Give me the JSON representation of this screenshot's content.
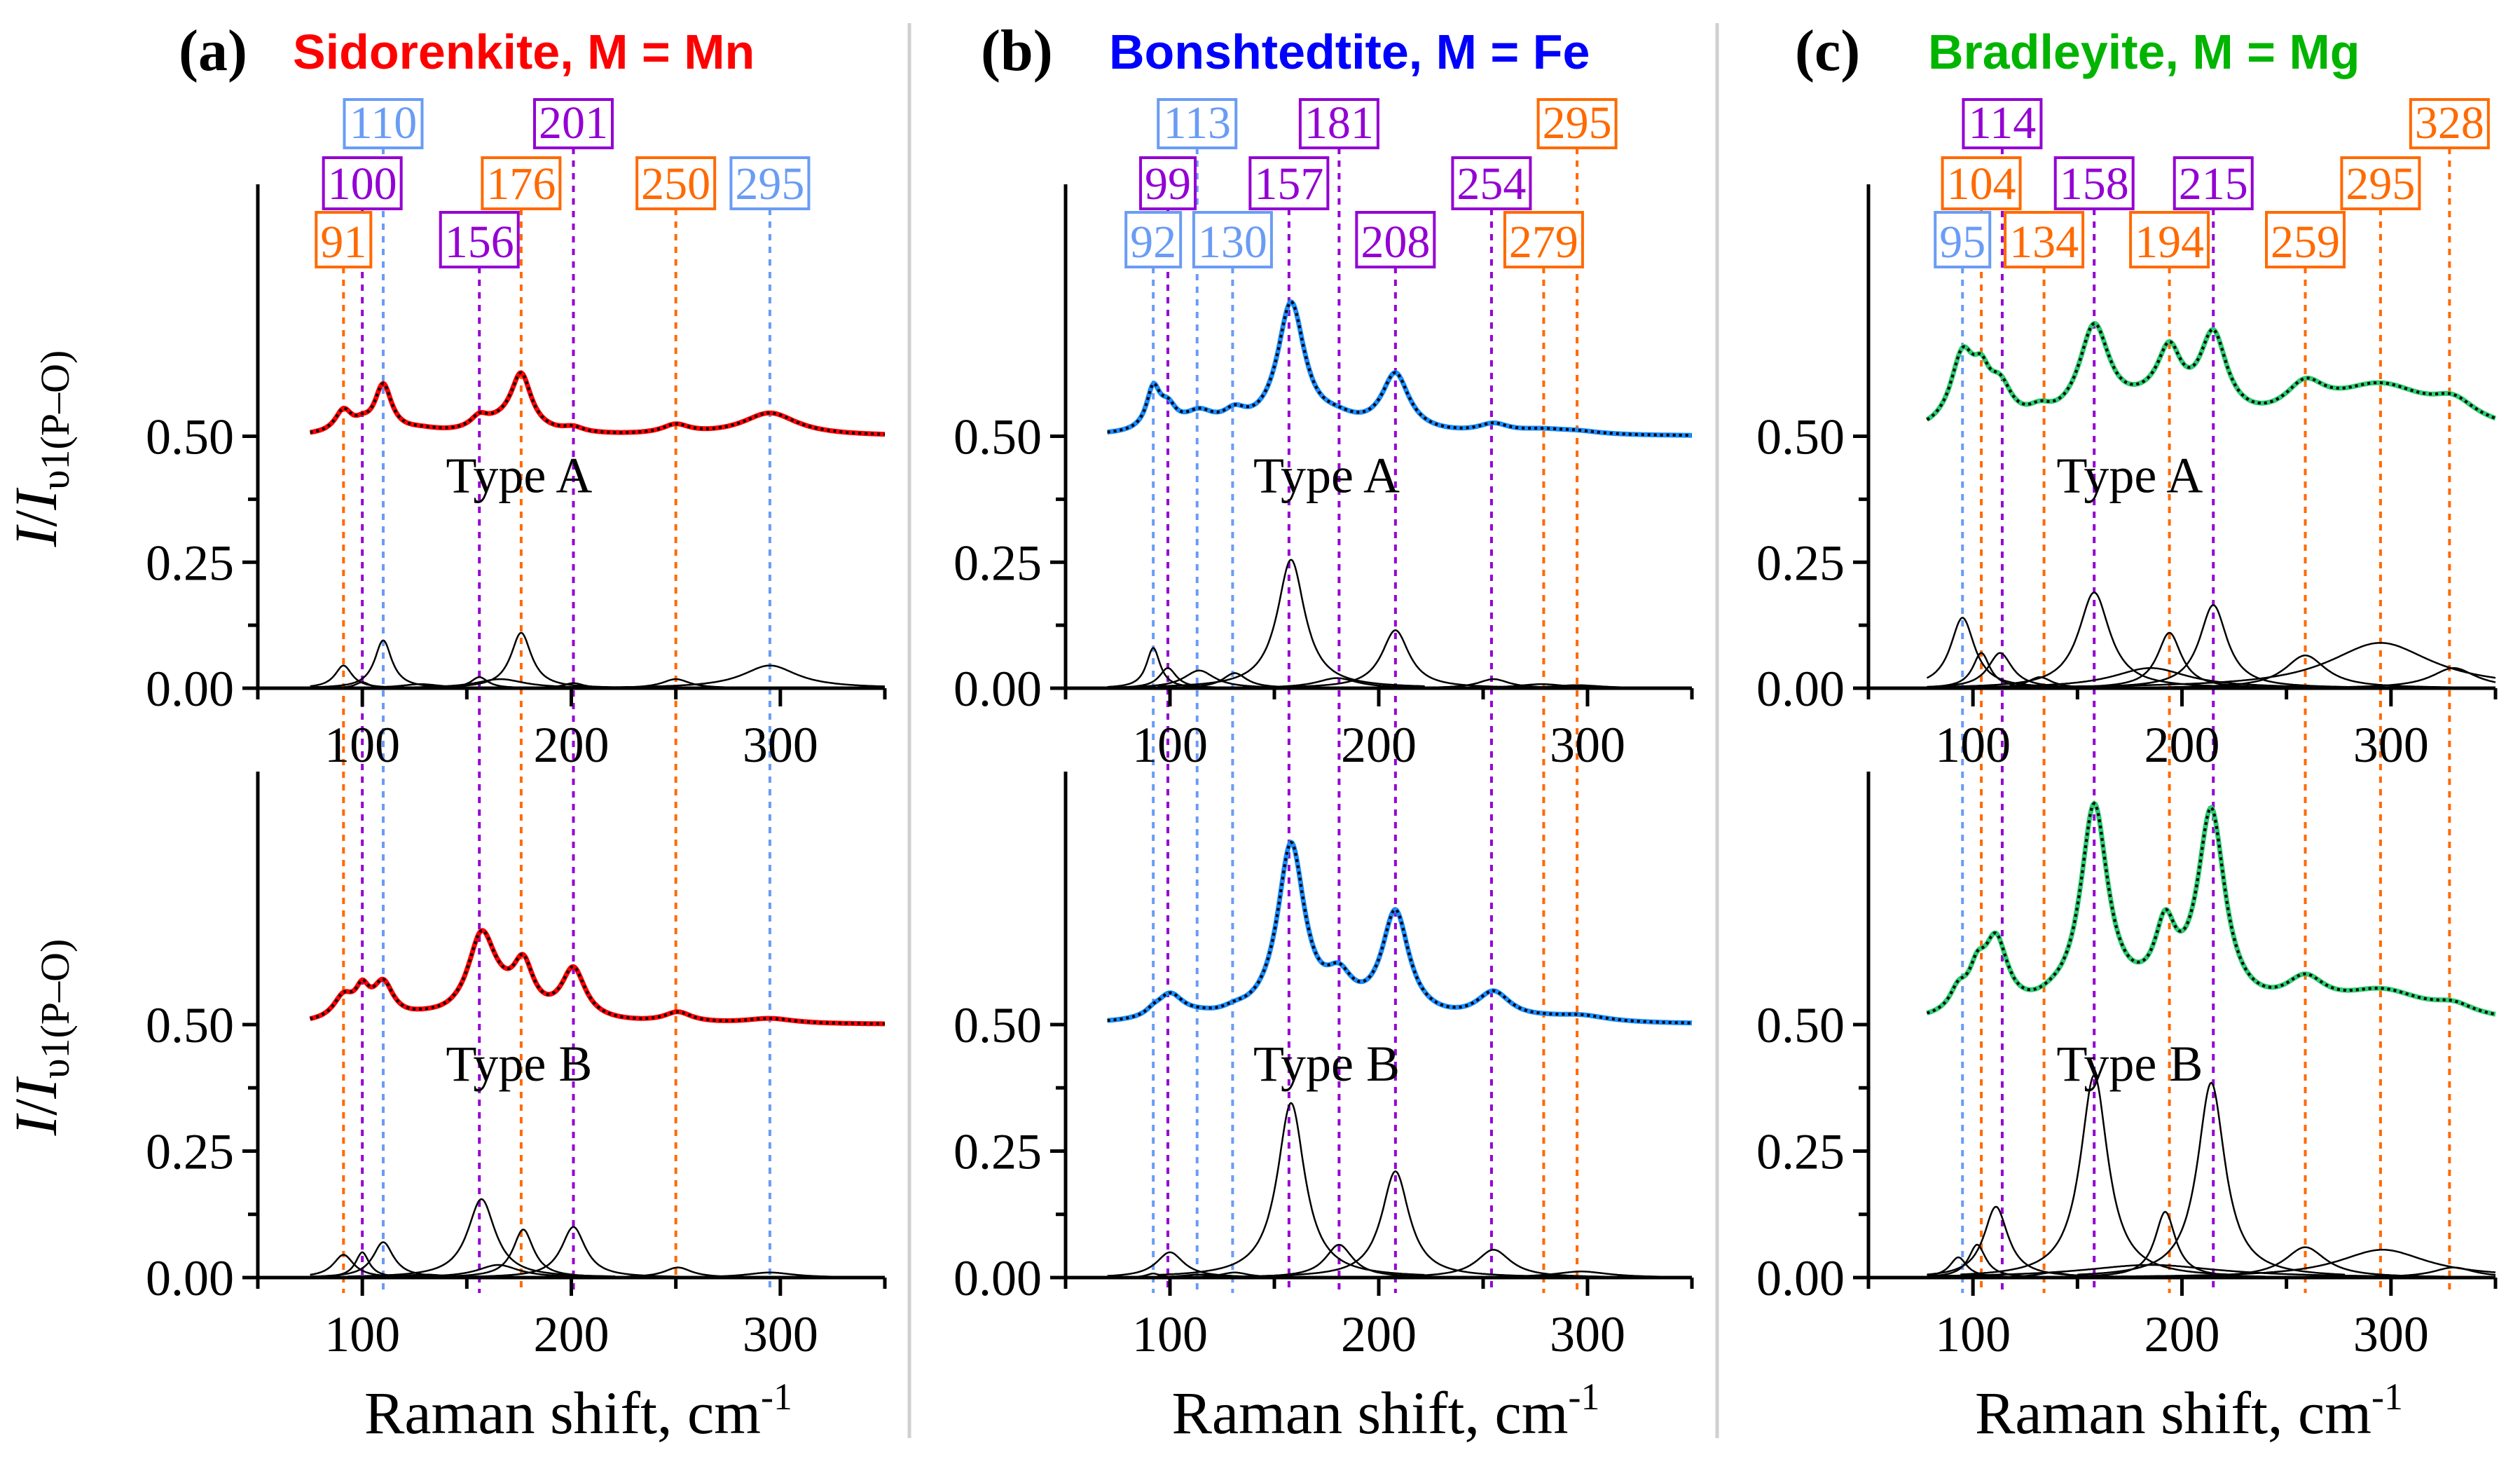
{
  "chart_data": [
    {
      "type": "line",
      "panel_letter": "(a)",
      "title": "Sidorenkite, M = Mn",
      "title_color": "#ff0000",
      "fit_color": "#ff0000",
      "xlabel": "Raman shift, cm-1",
      "ylabel": "I/I_υ1(P–O)",
      "xlim": [
        50,
        350
      ],
      "ylim": [
        0,
        1.0
      ],
      "x_ticks": [
        100,
        200,
        300
      ],
      "x_minor_ticks": [
        50,
        150,
        250,
        350
      ],
      "y_ticks": [
        "0.00",
        "0.25",
        "0.50"
      ],
      "y_minor_ticks": [
        0.125,
        0.375
      ],
      "spectrum_x_range": [
        75,
        350
      ],
      "offset": 0.5,
      "peak_labels": [
        {
          "value": 110,
          "text": "110",
          "color": "#6a9cf5",
          "row": 1
        },
        {
          "value": 201,
          "text": "201",
          "color": "#9400d3",
          "row": 1
        },
        {
          "value": 100,
          "text": "100",
          "color": "#9400d3",
          "row": 2
        },
        {
          "value": 176,
          "text": "176",
          "color": "#ff6a00",
          "row": 2
        },
        {
          "value": 250,
          "text": "250",
          "color": "#ff6a00",
          "row": 2
        },
        {
          "value": 295,
          "text": "295",
          "color": "#6a9cf5",
          "row": 2
        },
        {
          "value": 91,
          "text": "91",
          "color": "#ff6a00",
          "row": 3
        },
        {
          "value": 156,
          "text": "156",
          "color": "#9400d3",
          "row": 3
        }
      ],
      "subplots": [
        {
          "label": "Type A",
          "components": [
            {
              "center": 91,
              "height": 0.045,
              "width": 5
            },
            {
              "center": 100,
              "height": 0.012,
              "width": 4
            },
            {
              "center": 110,
              "height": 0.095,
              "width": 5
            },
            {
              "center": 128,
              "height": 0.008,
              "width": 12
            },
            {
              "center": 156,
              "height": 0.022,
              "width": 5
            },
            {
              "center": 166,
              "height": 0.018,
              "width": 14
            },
            {
              "center": 176,
              "height": 0.11,
              "width": 6
            },
            {
              "center": 201,
              "height": 0.01,
              "width": 6
            },
            {
              "center": 250,
              "height": 0.018,
              "width": 8
            },
            {
              "center": 295,
              "height": 0.045,
              "width": 16
            }
          ]
        },
        {
          "label": "Type B",
          "components": [
            {
              "center": 91,
              "height": 0.045,
              "width": 6
            },
            {
              "center": 100,
              "height": 0.05,
              "width": 4
            },
            {
              "center": 110,
              "height": 0.07,
              "width": 6
            },
            {
              "center": 130,
              "height": 0.006,
              "width": 12
            },
            {
              "center": 157,
              "height": 0.155,
              "width": 8
            },
            {
              "center": 165,
              "height": 0.025,
              "width": 12
            },
            {
              "center": 177,
              "height": 0.095,
              "width": 6
            },
            {
              "center": 201,
              "height": 0.1,
              "width": 7
            },
            {
              "center": 251,
              "height": 0.02,
              "width": 8
            },
            {
              "center": 295,
              "height": 0.01,
              "width": 14
            }
          ]
        }
      ]
    },
    {
      "type": "line",
      "panel_letter": "(b)",
      "title": "Bonshtedtite, M = Fe",
      "title_color": "#0000ff",
      "fit_color": "#1a8cff",
      "xlabel": "Raman shift, cm-1",
      "ylabel": "",
      "xlim": [
        50,
        350
      ],
      "ylim": [
        0,
        1.0
      ],
      "x_ticks": [
        100,
        200,
        300
      ],
      "x_minor_ticks": [
        50,
        150,
        250,
        350
      ],
      "y_ticks": [
        "0.00",
        "0.25",
        "0.50"
      ],
      "y_minor_ticks": [
        0.125,
        0.375
      ],
      "spectrum_x_range": [
        70,
        350
      ],
      "offset": 0.5,
      "peak_labels": [
        {
          "value": 113,
          "text": "113",
          "color": "#6a9cf5",
          "row": 1
        },
        {
          "value": 181,
          "text": "181",
          "color": "#9400d3",
          "row": 1
        },
        {
          "value": 295,
          "text": "295",
          "color": "#ff6a00",
          "row": 1
        },
        {
          "value": 99,
          "text": "99",
          "color": "#9400d3",
          "row": 2
        },
        {
          "value": 157,
          "text": "157",
          "color": "#9400d3",
          "row": 2
        },
        {
          "value": 254,
          "text": "254",
          "color": "#9400d3",
          "row": 2
        },
        {
          "value": 92,
          "text": "92",
          "color": "#6a9cf5",
          "row": 3
        },
        {
          "value": 130,
          "text": "130",
          "color": "#6a9cf5",
          "row": 3
        },
        {
          "value": 208,
          "text": "208",
          "color": "#9400d3",
          "row": 3
        },
        {
          "value": 279,
          "text": "279",
          "color": "#ff6a00",
          "row": 3
        }
      ],
      "subplots": [
        {
          "label": "Type A",
          "components": [
            {
              "center": 92,
              "height": 0.08,
              "width": 4
            },
            {
              "center": 99,
              "height": 0.04,
              "width": 5
            },
            {
              "center": 114,
              "height": 0.035,
              "width": 9
            },
            {
              "center": 131,
              "height": 0.03,
              "width": 7
            },
            {
              "center": 158,
              "height": 0.255,
              "width": 8
            },
            {
              "center": 180,
              "height": 0.02,
              "width": 12
            },
            {
              "center": 208,
              "height": 0.115,
              "width": 8
            },
            {
              "center": 255,
              "height": 0.018,
              "width": 9
            },
            {
              "center": 278,
              "height": 0.008,
              "width": 14
            },
            {
              "center": 295,
              "height": 0.006,
              "width": 14
            }
          ]
        },
        {
          "label": "Type B",
          "components": [
            {
              "center": 92,
              "height": 0.008,
              "width": 4
            },
            {
              "center": 100,
              "height": 0.05,
              "width": 8
            },
            {
              "center": 114,
              "height": 0.006,
              "width": 10
            },
            {
              "center": 131,
              "height": 0.01,
              "width": 8
            },
            {
              "center": 158,
              "height": 0.345,
              "width": 8
            },
            {
              "center": 181,
              "height": 0.065,
              "width": 8
            },
            {
              "center": 208,
              "height": 0.21,
              "width": 8
            },
            {
              "center": 255,
              "height": 0.055,
              "width": 10
            },
            {
              "center": 279,
              "height": 0.004,
              "width": 14
            },
            {
              "center": 297,
              "height": 0.012,
              "width": 16
            }
          ]
        }
      ]
    },
    {
      "type": "line",
      "panel_letter": "(c)",
      "title": "Bradleyite, M = Mg",
      "title_color": "#00b400",
      "fit_color": "#2ecc71",
      "xlabel": "Raman shift, cm-1",
      "ylabel": "",
      "xlim": [
        50,
        350
      ],
      "ylim": [
        0,
        1.0
      ],
      "x_ticks": [
        100,
        200,
        300
      ],
      "x_minor_ticks": [
        50,
        150,
        250,
        350
      ],
      "y_ticks": [
        "0.00",
        "0.25",
        "0.50"
      ],
      "y_minor_ticks": [
        0.125,
        0.375
      ],
      "spectrum_x_range": [
        78,
        350
      ],
      "offset": 0.5,
      "peak_labels": [
        {
          "value": 114,
          "text": "114",
          "color": "#9400d3",
          "row": 1
        },
        {
          "value": 328,
          "text": "328",
          "color": "#ff6a00",
          "row": 1
        },
        {
          "value": 104,
          "text": "104",
          "color": "#ff6a00",
          "row": 2
        },
        {
          "value": 158,
          "text": "158",
          "color": "#9400d3",
          "row": 2
        },
        {
          "value": 215,
          "text": "215",
          "color": "#9400d3",
          "row": 2
        },
        {
          "value": 295,
          "text": "295",
          "color": "#ff6a00",
          "row": 2
        },
        {
          "value": 95,
          "text": "95",
          "color": "#6a9cf5",
          "row": 3
        },
        {
          "value": 134,
          "text": "134",
          "color": "#ff6a00",
          "row": 3
        },
        {
          "value": 194,
          "text": "194",
          "color": "#ff6a00",
          "row": 3
        },
        {
          "value": 259,
          "text": "259",
          "color": "#ff6a00",
          "row": 3
        }
      ],
      "subplots": [
        {
          "label": "Type A",
          "components": [
            {
              "center": 95,
              "height": 0.14,
              "width": 7
            },
            {
              "center": 104,
              "height": 0.07,
              "width": 5
            },
            {
              "center": 113,
              "height": 0.07,
              "width": 7
            },
            {
              "center": 132,
              "height": 0.022,
              "width": 7
            },
            {
              "center": 158,
              "height": 0.19,
              "width": 9
            },
            {
              "center": 185,
              "height": 0.04,
              "width": 22
            },
            {
              "center": 194,
              "height": 0.11,
              "width": 7
            },
            {
              "center": 215,
              "height": 0.165,
              "width": 8
            },
            {
              "center": 259,
              "height": 0.065,
              "width": 12
            },
            {
              "center": 295,
              "height": 0.09,
              "width": 30
            },
            {
              "center": 330,
              "height": 0.04,
              "width": 13
            }
          ]
        },
        {
          "label": "Type B",
          "components": [
            {
              "center": 93,
              "height": 0.04,
              "width": 5
            },
            {
              "center": 102,
              "height": 0.065,
              "width": 5
            },
            {
              "center": 111,
              "height": 0.14,
              "width": 7
            },
            {
              "center": 138,
              "height": 0.01,
              "width": 9
            },
            {
              "center": 158,
              "height": 0.4,
              "width": 8
            },
            {
              "center": 185,
              "height": 0.025,
              "width": 40
            },
            {
              "center": 192,
              "height": 0.13,
              "width": 6
            },
            {
              "center": 214,
              "height": 0.385,
              "width": 8
            },
            {
              "center": 259,
              "height": 0.06,
              "width": 12
            },
            {
              "center": 296,
              "height": 0.055,
              "width": 26
            },
            {
              "center": 330,
              "height": 0.02,
              "width": 12
            }
          ]
        }
      ]
    }
  ]
}
